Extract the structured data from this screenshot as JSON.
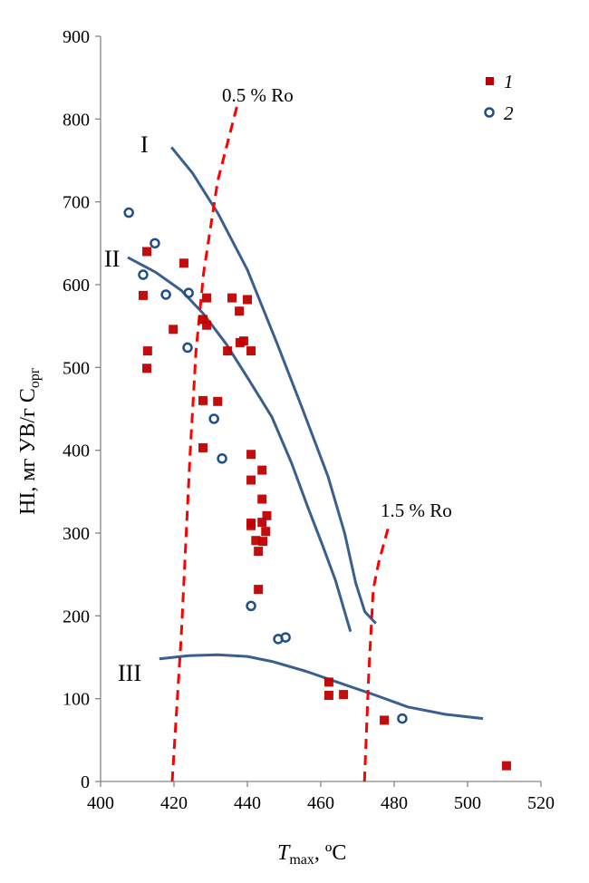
{
  "chart_data": {
    "type": "scatter",
    "xlabel_main": "T",
    "xlabel_sub": "max",
    "xlabel_tail": ", ºC",
    "ylabel_main": "HI, мг УВ/г C",
    "ylabel_sub": "орг",
    "xlim": [
      400,
      520
    ],
    "ylim": [
      0,
      900
    ],
    "xticks": [
      "400",
      "420",
      "440",
      "460",
      "480",
      "500",
      "520"
    ],
    "yticks": [
      "0",
      "100",
      "200",
      "300",
      "400",
      "500",
      "600",
      "700",
      "800",
      "900"
    ],
    "grid": false,
    "legend_position": "top-right",
    "colors": {
      "series1": "#c00000",
      "series2": "#1f4e8c",
      "curves": "#3a5f8f",
      "ro": "#ff0000",
      "axis": "#868686"
    },
    "series": [
      {
        "name": "1",
        "marker": "square",
        "points": [
          [
            412.6,
            640
          ],
          [
            422.7,
            626
          ],
          [
            411.6,
            587
          ],
          [
            428.9,
            584
          ],
          [
            435.8,
            584
          ],
          [
            440,
            582
          ],
          [
            437.8,
            568
          ],
          [
            427.9,
            558
          ],
          [
            428.9,
            551
          ],
          [
            419.8,
            546
          ],
          [
            412.8,
            520
          ],
          [
            434.6,
            520
          ],
          [
            438,
            530
          ],
          [
            439,
            532
          ],
          [
            441,
            520
          ],
          [
            412.6,
            499
          ],
          [
            427.9,
            460
          ],
          [
            431.9,
            459
          ],
          [
            427.9,
            403
          ],
          [
            441,
            395
          ],
          [
            444,
            376
          ],
          [
            441,
            364
          ],
          [
            444,
            341
          ],
          [
            445.3,
            321
          ],
          [
            441,
            312
          ],
          [
            441,
            309
          ],
          [
            444,
            313
          ],
          [
            445,
            302
          ],
          [
            442.3,
            291
          ],
          [
            444.2,
            290
          ],
          [
            443,
            278
          ],
          [
            443,
            232
          ],
          [
            462.2,
            120
          ],
          [
            462.2,
            104
          ],
          [
            466.2,
            105
          ],
          [
            477.3,
            74
          ],
          [
            510.6,
            19
          ]
        ]
      },
      {
        "name": "2",
        "marker": "circle",
        "points": [
          [
            407.7,
            687
          ],
          [
            414.8,
            650
          ],
          [
            411.6,
            612
          ],
          [
            417.8,
            588
          ],
          [
            424,
            590
          ],
          [
            423.7,
            524
          ],
          [
            430.9,
            438
          ],
          [
            433.1,
            390
          ],
          [
            441,
            212
          ],
          [
            448.4,
            172
          ],
          [
            450.4,
            174
          ],
          [
            482.2,
            76
          ]
        ]
      }
    ],
    "curves": [
      {
        "name": "I",
        "points": [
          [
            419.3,
            766
          ],
          [
            425,
            735
          ],
          [
            432,
            686
          ],
          [
            440,
            618
          ],
          [
            448,
            530
          ],
          [
            455,
            450
          ],
          [
            462,
            368
          ],
          [
            466.5,
            300
          ],
          [
            469.5,
            240
          ],
          [
            472,
            205
          ],
          [
            475,
            191
          ]
        ]
      },
      {
        "name": "II",
        "points": [
          [
            407.4,
            633
          ],
          [
            415,
            615
          ],
          [
            422,
            593
          ],
          [
            428,
            565
          ],
          [
            434.3,
            528
          ],
          [
            440,
            488
          ],
          [
            446.7,
            440
          ],
          [
            452,
            385
          ],
          [
            456.5,
            331
          ],
          [
            460.5,
            285
          ],
          [
            464,
            243
          ],
          [
            468.1,
            181
          ]
        ]
      },
      {
        "name": "III",
        "points": [
          [
            416,
            148
          ],
          [
            424,
            152
          ],
          [
            431.9,
            153
          ],
          [
            440,
            151
          ],
          [
            446.7,
            145
          ],
          [
            456,
            133
          ],
          [
            466.4,
            117
          ],
          [
            475,
            104
          ],
          [
            483.7,
            90
          ],
          [
            494,
            81
          ],
          [
            504.2,
            76
          ]
        ]
      }
    ],
    "ro_lines": [
      {
        "label": "0.5 % Ro",
        "points": [
          [
            419.5,
            0
          ],
          [
            422,
            177
          ],
          [
            424.4,
            396
          ],
          [
            426,
            520
          ],
          [
            428.1,
            615
          ],
          [
            431.9,
            725
          ],
          [
            437.3,
            818
          ]
        ]
      },
      {
        "label": "1.5 % Ro",
        "points": [
          [
            471.9,
            0
          ],
          [
            473.1,
            134
          ],
          [
            474.3,
            232
          ],
          [
            475.8,
            265
          ],
          [
            478.3,
            305
          ]
        ]
      }
    ]
  }
}
